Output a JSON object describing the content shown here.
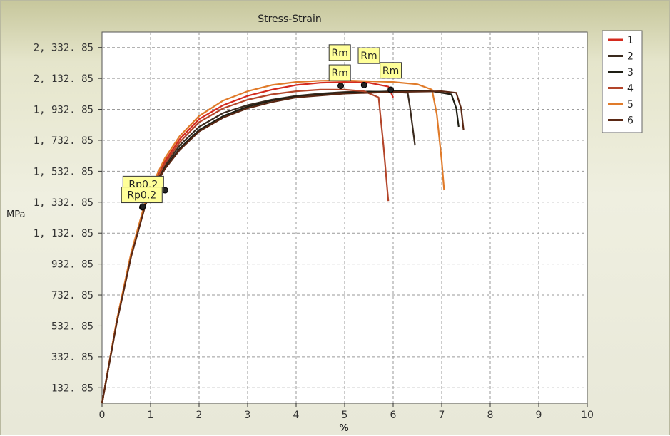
{
  "chart_data": {
    "type": "line",
    "title": "Stress-Strain",
    "xlabel": "%",
    "ylabel": "MPa",
    "xlim": [
      0,
      10
    ],
    "ylim": [
      32.85,
      2432.85
    ],
    "x_ticks": [
      0,
      1,
      2,
      3,
      4,
      5,
      6,
      7,
      8,
      9,
      10
    ],
    "x_tick_labels": [
      "0",
      "1",
      "2",
      "3",
      "4",
      "5",
      "6",
      "7",
      "8",
      "9",
      "10"
    ],
    "y_ticks": [
      132.85,
      332.85,
      532.85,
      732.85,
      932.85,
      1132.85,
      1332.85,
      1532.85,
      1732.85,
      1932.85,
      2132.85,
      2332.85
    ],
    "y_tick_labels": [
      "132. 85",
      "332. 85",
      "532. 85",
      "732. 85",
      "932. 85",
      "1, 132. 85",
      "1, 332. 85",
      "1, 532. 85",
      "1, 732. 85",
      "1, 932. 85",
      "2, 132. 85",
      "2, 332. 85"
    ],
    "grid": true,
    "legend_position": "right",
    "series": [
      {
        "name": "1",
        "color": "#d42a1e",
        "values": [
          [
            0,
            32.85
          ],
          [
            0.3,
            560
          ],
          [
            0.6,
            1000
          ],
          [
            0.9,
            1340
          ],
          [
            1.1,
            1480
          ],
          [
            1.3,
            1600
          ],
          [
            1.6,
            1740
          ],
          [
            2.0,
            1870
          ],
          [
            2.5,
            1960
          ],
          [
            3.0,
            2020
          ],
          [
            3.5,
            2060
          ],
          [
            4.0,
            2090
          ],
          [
            4.5,
            2105
          ],
          [
            5.0,
            2110
          ],
          [
            5.5,
            2105
          ],
          [
            5.9,
            2080
          ],
          [
            6.0,
            2010
          ]
        ]
      },
      {
        "name": "2",
        "color": "#3a2a1e",
        "values": [
          [
            0,
            32.85
          ],
          [
            0.3,
            555
          ],
          [
            0.6,
            990
          ],
          [
            0.9,
            1330
          ],
          [
            1.1,
            1460
          ],
          [
            1.3,
            1570
          ],
          [
            1.6,
            1700
          ],
          [
            2.0,
            1820
          ],
          [
            2.5,
            1910
          ],
          [
            3.0,
            1960
          ],
          [
            3.5,
            1995
          ],
          [
            4.0,
            2020
          ],
          [
            4.5,
            2035
          ],
          [
            5.0,
            2045
          ],
          [
            5.5,
            2048
          ],
          [
            6.0,
            2045
          ],
          [
            6.3,
            2040
          ],
          [
            6.35,
            1940
          ],
          [
            6.45,
            1700
          ]
        ]
      },
      {
        "name": "3",
        "color": "#1e1e14",
        "values": [
          [
            0,
            32.85
          ],
          [
            0.3,
            550
          ],
          [
            0.6,
            985
          ],
          [
            0.9,
            1325
          ],
          [
            1.1,
            1450
          ],
          [
            1.3,
            1555
          ],
          [
            1.6,
            1680
          ],
          [
            2.0,
            1800
          ],
          [
            2.5,
            1890
          ],
          [
            3.0,
            1950
          ],
          [
            3.5,
            1990
          ],
          [
            4.0,
            2015
          ],
          [
            5.0,
            2040
          ],
          [
            6.0,
            2050
          ],
          [
            6.8,
            2050
          ],
          [
            7.2,
            2030
          ],
          [
            7.3,
            1940
          ],
          [
            7.35,
            1820
          ]
        ]
      },
      {
        "name": "4",
        "color": "#b3452a",
        "values": [
          [
            0,
            32.85
          ],
          [
            0.3,
            558
          ],
          [
            0.6,
            995
          ],
          [
            0.9,
            1335
          ],
          [
            1.1,
            1470
          ],
          [
            1.3,
            1585
          ],
          [
            1.6,
            1720
          ],
          [
            2.0,
            1850
          ],
          [
            2.5,
            1940
          ],
          [
            3.0,
            1995
          ],
          [
            3.5,
            2030
          ],
          [
            4.0,
            2050
          ],
          [
            4.5,
            2060
          ],
          [
            5.0,
            2060
          ],
          [
            5.4,
            2050
          ],
          [
            5.7,
            2010
          ],
          [
            5.8,
            1700
          ],
          [
            5.9,
            1340
          ]
        ]
      },
      {
        "name": "5",
        "color": "#e07b2a",
        "values": [
          [
            0,
            32.85
          ],
          [
            0.3,
            562
          ],
          [
            0.6,
            1005
          ],
          [
            0.9,
            1345
          ],
          [
            1.1,
            1490
          ],
          [
            1.3,
            1620
          ],
          [
            1.6,
            1760
          ],
          [
            2.0,
            1890
          ],
          [
            2.5,
            1990
          ],
          [
            3.0,
            2050
          ],
          [
            3.5,
            2090
          ],
          [
            4.0,
            2110
          ],
          [
            4.5,
            2118
          ],
          [
            5.0,
            2120
          ],
          [
            5.5,
            2115
          ],
          [
            6.0,
            2110
          ],
          [
            6.5,
            2095
          ],
          [
            6.8,
            2060
          ],
          [
            6.9,
            1900
          ],
          [
            7.0,
            1600
          ],
          [
            7.05,
            1410
          ]
        ]
      },
      {
        "name": "6",
        "color": "#5a2814",
        "values": [
          [
            0,
            32.85
          ],
          [
            0.3,
            548
          ],
          [
            0.6,
            980
          ],
          [
            0.9,
            1320
          ],
          [
            1.1,
            1445
          ],
          [
            1.3,
            1550
          ],
          [
            1.6,
            1670
          ],
          [
            2.0,
            1790
          ],
          [
            2.5,
            1880
          ],
          [
            3.0,
            1940
          ],
          [
            3.5,
            1980
          ],
          [
            4.0,
            2010
          ],
          [
            5.0,
            2035
          ],
          [
            6.0,
            2045
          ],
          [
            7.0,
            2050
          ],
          [
            7.3,
            2040
          ],
          [
            7.4,
            1940
          ],
          [
            7.45,
            1800
          ]
        ]
      }
    ],
    "annotations": [
      {
        "label": "Rp0.2",
        "x": 0.85,
        "y": 1450
      },
      {
        "label": "Rp0.2",
        "x": 0.82,
        "y": 1380
      },
      {
        "label": "Rm",
        "x": 4.9,
        "y": 2300
      },
      {
        "label": "Rm",
        "x": 5.5,
        "y": 2280
      },
      {
        "label": "Rm",
        "x": 4.9,
        "y": 2170
      },
      {
        "label": "Rm",
        "x": 5.95,
        "y": 2185
      }
    ],
    "markers": [
      {
        "x": 0.83,
        "y": 1300
      },
      {
        "x": 0.84,
        "y": 1305
      },
      {
        "x": 4.92,
        "y": 2085
      },
      {
        "x": 5.4,
        "y": 2090
      },
      {
        "x": 5.95,
        "y": 2060
      },
      {
        "x": 1.3,
        "y": 1410
      }
    ]
  }
}
